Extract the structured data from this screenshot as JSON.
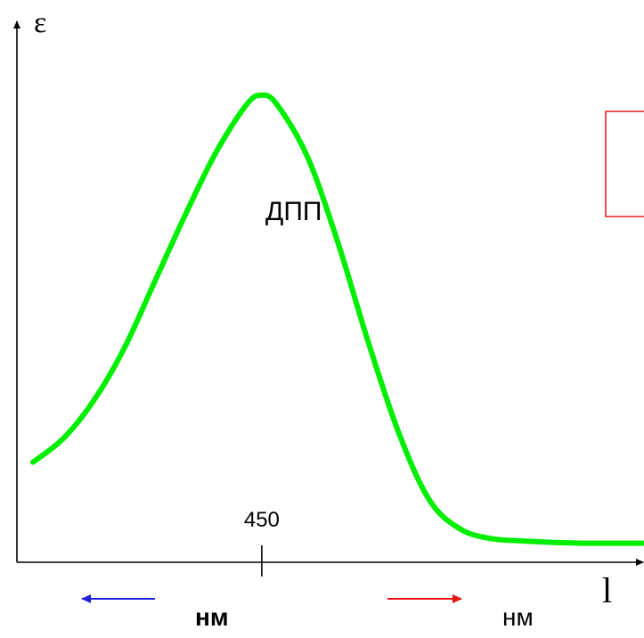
{
  "chart_data": {
    "type": "line",
    "xlabel": "l",
    "ylabel": "ε",
    "x_ticks": [
      {
        "value": 450,
        "label": "450"
      }
    ],
    "xlim": [
      300,
      700
    ],
    "ylim": [
      0,
      1.0
    ],
    "grid": false,
    "series": [
      {
        "color": "#00ee00",
        "x": [
          300,
          320,
          340,
          360,
          380,
          400,
          420,
          440,
          450,
          460,
          480,
          500,
          520,
          540,
          560,
          580,
          600,
          620,
          640,
          660,
          680,
          700
        ],
        "y": [
          0.18,
          0.23,
          0.31,
          0.42,
          0.56,
          0.7,
          0.83,
          0.93,
          0.95,
          0.93,
          0.82,
          0.64,
          0.43,
          0.24,
          0.1,
          0.04,
          0.02,
          0.015,
          0.012,
          0.01,
          0.01,
          0.01
        ]
      }
    ],
    "annotations": {
      "band_label": "ДПП",
      "left_unit": "нм",
      "right_unit": "нм"
    },
    "colors": {
      "curve": "#00ee00",
      "left_arrow": "#2222dd",
      "right_arrow": "#ee1111",
      "box": "#dd2222"
    }
  }
}
